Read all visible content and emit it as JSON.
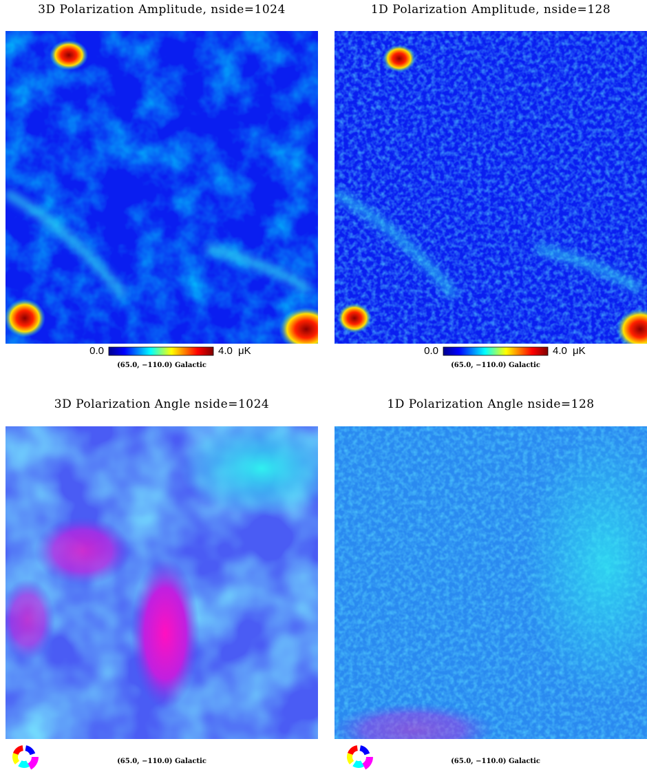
{
  "panels": [
    {
      "title": "3D Polarization Amplitude, nside=1024",
      "colorbar": {
        "min_label": "0.0",
        "max_label": "4.0",
        "unit": "μK"
      },
      "coord": "(65.0, −110.0) Galactic"
    },
    {
      "title": "1D Polarization Amplitude, nside=128",
      "colorbar": {
        "min_label": "0.0",
        "max_label": "4.0",
        "unit": "μK"
      },
      "coord": "(65.0, −110.0) Galactic"
    },
    {
      "title": "3D Polarization Angle nside=1024",
      "coord": "(65.0, −110.0) Galactic"
    },
    {
      "title": "1D Polarization Angle nside=128",
      "coord": "(65.0, −110.0) Galactic"
    }
  ]
}
